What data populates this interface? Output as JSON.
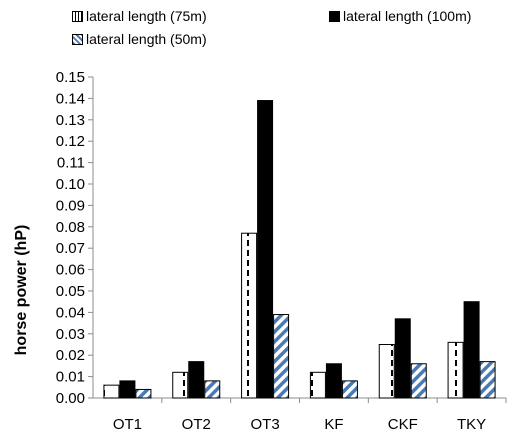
{
  "chart_data": {
    "type": "bar",
    "categories": [
      "OT1",
      "OT2",
      "OT3",
      "KF",
      "CKF",
      "TKY"
    ],
    "series": [
      {
        "name": "lateral length (75m)",
        "values": [
          0.006,
          0.012,
          0.077,
          0.012,
          0.025,
          0.026
        ],
        "pattern": "dashed-vertical",
        "color": "#000000"
      },
      {
        "name": "lateral length (100m)",
        "values": [
          0.008,
          0.017,
          0.139,
          0.016,
          0.037,
          0.045
        ],
        "pattern": "solid",
        "color": "#000000"
      },
      {
        "name": "lateral length (50m)",
        "values": [
          0.004,
          0.008,
          0.039,
          0.008,
          0.016,
          0.017
        ],
        "pattern": "diagonal-stripes",
        "color": "#4a7ab5"
      }
    ],
    "ylabel": "horse power (hP)",
    "xlabel": "",
    "ylim": [
      0,
      0.15
    ],
    "yticks": [
      "0.00",
      "0.01",
      "0.02",
      "0.03",
      "0.04",
      "0.05",
      "0.06",
      "0.07",
      "0.08",
      "0.09",
      "0.10",
      "0.11",
      "0.12",
      "0.13",
      "0.14",
      "0.15"
    ],
    "grid": false,
    "legend_position": "top"
  }
}
